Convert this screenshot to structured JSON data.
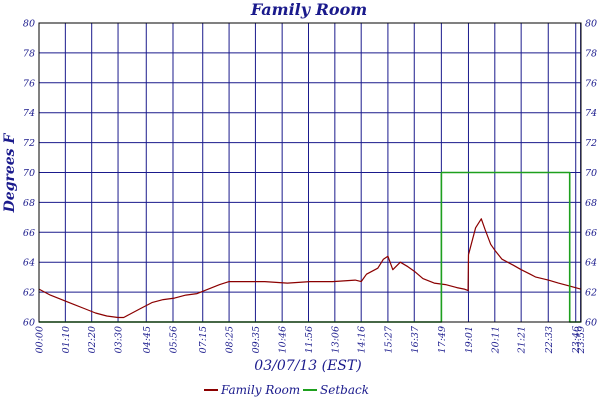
{
  "chart_data": {
    "type": "line",
    "title": "Family Room",
    "xlabel": "03/07/13 (EST)",
    "ylabel": "Degrees F",
    "ylim": [
      60,
      80
    ],
    "y_ticks": [
      "60",
      "62",
      "64",
      "66",
      "68",
      "70",
      "72",
      "74",
      "76",
      "78",
      "80"
    ],
    "x_range_minutes": [
      0,
      1440
    ],
    "x_tick_labels": [
      "00:00",
      "01:10",
      "02:20",
      "03:30",
      "04:45",
      "05:56",
      "07:15",
      "08:25",
      "09:35",
      "10:46",
      "11:56",
      "13:06",
      "14:16",
      "15:27",
      "16:37",
      "17:49",
      "19:01",
      "20:11",
      "21:21",
      "22:33",
      "23:46",
      "23:59"
    ],
    "grid": true,
    "legend_position": "bottom-center",
    "series": [
      {
        "name": "Family Room",
        "color": "#8b0000",
        "x": [
          "00:00",
          "00:30",
          "01:00",
          "01:30",
          "02:00",
          "02:30",
          "03:00",
          "03:30",
          "03:45",
          "04:00",
          "04:30",
          "05:00",
          "05:30",
          "06:00",
          "06:30",
          "07:00",
          "07:30",
          "08:00",
          "08:25",
          "09:00",
          "10:00",
          "11:00",
          "12:00",
          "13:00",
          "14:00",
          "14:16",
          "14:30",
          "15:00",
          "15:15",
          "15:27",
          "15:40",
          "16:00",
          "16:20",
          "16:37",
          "17:00",
          "17:30",
          "18:00",
          "18:30",
          "18:50",
          "19:00",
          "19:01",
          "19:20",
          "19:35",
          "19:45",
          "20:00",
          "20:11",
          "20:30",
          "21:00",
          "21:21",
          "21:45",
          "22:00",
          "22:33",
          "23:00",
          "23:30",
          "23:59"
        ],
        "values": [
          62.2,
          61.8,
          61.5,
          61.2,
          60.9,
          60.6,
          60.4,
          60.3,
          60.3,
          60.5,
          60.9,
          61.3,
          61.5,
          61.6,
          61.8,
          61.9,
          62.2,
          62.5,
          62.7,
          62.7,
          62.7,
          62.6,
          62.7,
          62.7,
          62.8,
          62.7,
          63.2,
          63.6,
          64.2,
          64.4,
          63.5,
          64.0,
          63.7,
          63.4,
          62.9,
          62.6,
          62.5,
          62.3,
          62.2,
          62.1,
          64.5,
          66.3,
          66.9,
          66.2,
          65.2,
          64.8,
          64.2,
          63.8,
          63.5,
          63.2,
          63.0,
          62.8,
          62.6,
          62.4,
          62.2
        ]
      },
      {
        "name": "Setback",
        "color": "#1ea01e",
        "x": [
          "00:00",
          "17:49",
          "17:49",
          "23:30",
          "23:30",
          "23:59"
        ],
        "values": [
          60,
          60,
          70,
          70,
          60,
          60
        ]
      }
    ]
  }
}
